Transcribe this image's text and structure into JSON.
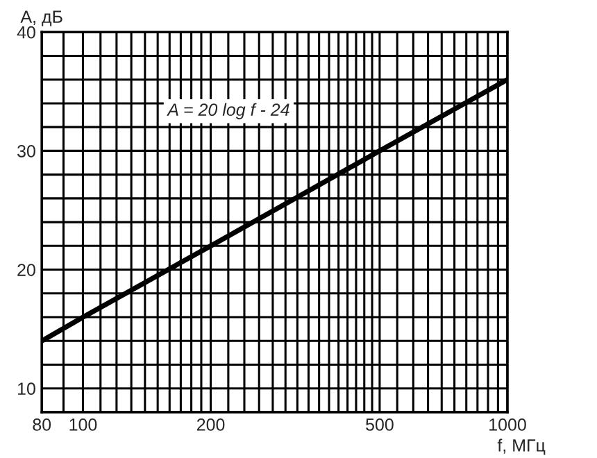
{
  "chart_data": {
    "type": "line",
    "xlabel": "f, МГц",
    "ylabel": "A, дБ",
    "log": "x",
    "x": [
      80,
      100,
      200,
      500,
      1000
    ],
    "series": [
      {
        "name": "A = 20 log f - 24",
        "color": "#000000",
        "values": [
          14,
          16,
          22,
          30,
          36
        ]
      }
    ],
    "xlim": [
      80,
      1000
    ],
    "ylim": [
      8,
      40
    ],
    "xticks": [
      80,
      {
        "value": 90,
        "label": null
      },
      100,
      {
        "value": 110,
        "label": null
      },
      {
        "value": 120,
        "label": null
      },
      {
        "value": 130,
        "label": null
      },
      {
        "value": 140,
        "label": null
      },
      {
        "value": 150,
        "label": null
      },
      {
        "value": 160,
        "label": null
      },
      {
        "value": 170,
        "label": null
      },
      {
        "value": 180,
        "label": null
      },
      {
        "value": 190,
        "label": null
      },
      200,
      {
        "value": 220,
        "label": null
      },
      {
        "value": 240,
        "label": null
      },
      {
        "value": 260,
        "label": null
      },
      {
        "value": 280,
        "label": null
      },
      {
        "value": 300,
        "label": null
      },
      {
        "value": 320,
        "label": null
      },
      {
        "value": 340,
        "label": null
      },
      {
        "value": 360,
        "label": null
      },
      {
        "value": 380,
        "label": null
      },
      {
        "value": 400,
        "label": null
      },
      {
        "value": 420,
        "label": null
      },
      {
        "value": 440,
        "label": null
      },
      {
        "value": 460,
        "label": null
      },
      {
        "value": 480,
        "label": null
      },
      500,
      {
        "value": 550,
        "label": null
      },
      {
        "value": 600,
        "label": null
      },
      {
        "value": 650,
        "label": null
      },
      {
        "value": 700,
        "label": null
      },
      {
        "value": 750,
        "label": null
      },
      {
        "value": 800,
        "label": null
      },
      {
        "value": 850,
        "label": null
      },
      {
        "value": 900,
        "label": null
      },
      {
        "value": 950,
        "label": null
      },
      1000
    ],
    "yticks": [
      {
        "value": 8,
        "label": null
      },
      10,
      {
        "value": 12,
        "label": null
      },
      {
        "value": 14,
        "label": null
      },
      {
        "value": 16,
        "label": null
      },
      {
        "value": 18,
        "label": null
      },
      20,
      {
        "value": 22,
        "label": null
      },
      {
        "value": 24,
        "label": null
      },
      {
        "value": 26,
        "label": null
      },
      {
        "value": 28,
        "label": null
      },
      30,
      {
        "value": 32,
        "label": null
      },
      {
        "value": 34,
        "label": null
      },
      {
        "value": 36,
        "label": null
      },
      {
        "value": 38,
        "label": null
      },
      40
    ],
    "grid": true,
    "legend": false,
    "marker": "none",
    "line_style": "solid"
  }
}
